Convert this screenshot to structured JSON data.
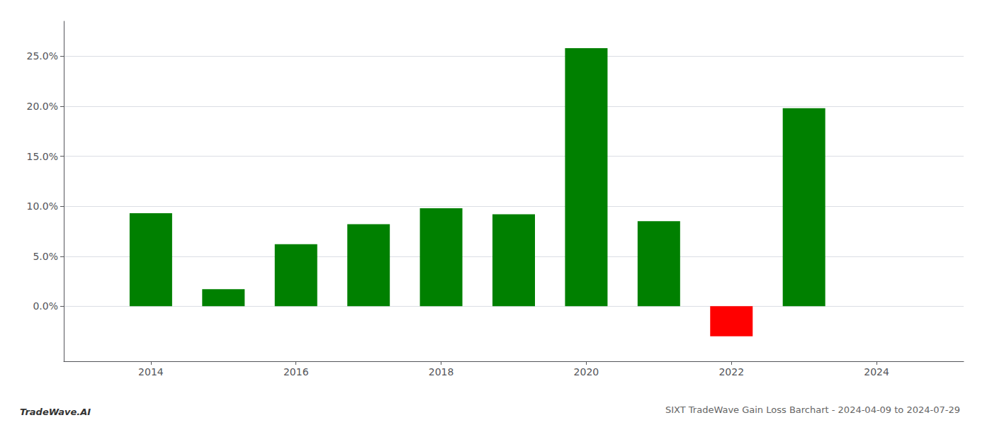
{
  "chart_data": {
    "type": "bar",
    "title": "SIXT TradeWave Gain Loss Barchart - 2024-04-09 to 2024-07-29",
    "annotations": [
      "TradeWave.AI"
    ],
    "x": [
      2014,
      2015,
      2016,
      2017,
      2018,
      2019,
      2020,
      2021,
      2022,
      2023
    ],
    "values": [
      0.093,
      0.017,
      0.062,
      0.082,
      0.098,
      0.092,
      0.258,
      0.085,
      -0.03,
      0.198
    ],
    "colors": [
      "#008000",
      "#008000",
      "#008000",
      "#008000",
      "#008000",
      "#008000",
      "#008000",
      "#008000",
      "#ff0000",
      "#008000"
    ],
    "xlim": [
      2012.8,
      2025.2
    ],
    "xticks": [
      2014,
      2016,
      2018,
      2020,
      2022,
      2024
    ],
    "ylim": [
      -0.055,
      0.285
    ],
    "yticks": [
      {
        "value": 0.0,
        "label": "0.0%"
      },
      {
        "value": 0.05,
        "label": "5.0%"
      },
      {
        "value": 0.1,
        "label": "10.0%"
      },
      {
        "value": 0.15,
        "label": "15.0%"
      },
      {
        "value": 0.2,
        "label": "20.0%"
      },
      {
        "value": 0.25,
        "label": "25.0%"
      }
    ],
    "grid": true
  }
}
